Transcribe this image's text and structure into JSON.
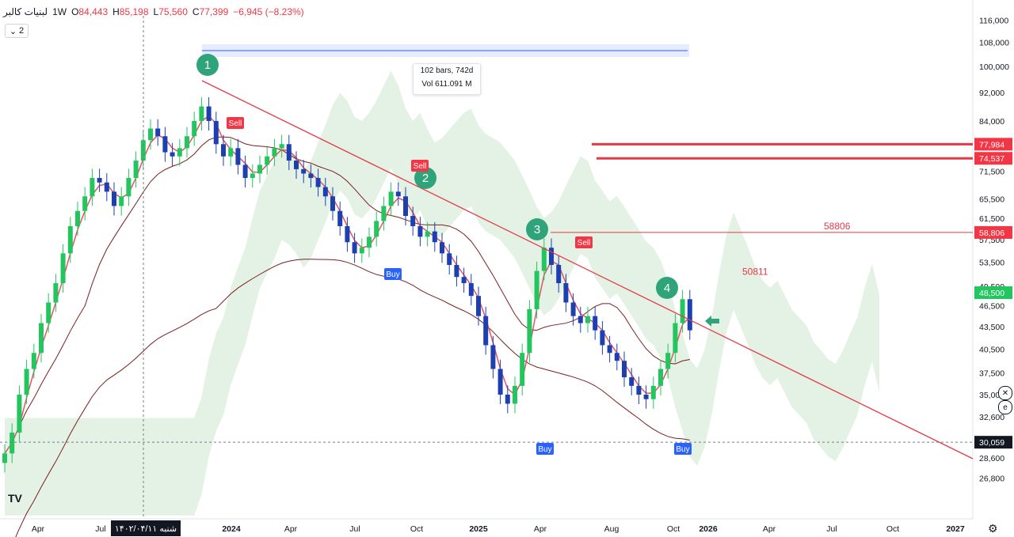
{
  "legend": {
    "symbol": "لبنیات کالبر",
    "interval": "1W",
    "open_label": "O",
    "open": "84,443",
    "high_label": "H",
    "high": "85,198",
    "low_label": "L",
    "low": "75,560",
    "close_label": "C",
    "close": "77,399",
    "change": "−6,945 (−8.23%)",
    "collapse": "2"
  },
  "measure": {
    "bars": "102 bars, 742d",
    "vol": "Vol 611.091 M"
  },
  "date_tag": "شنبه ۱۴۰۲/۰۴/۱۱",
  "colors": {
    "up": "#22c55e",
    "down": "#1e3fb0",
    "resistance": "#e53946",
    "tenkan": "#e05561",
    "kijun": "#7a1f1f",
    "cloud_bull": "#c8e6c9",
    "cloud_bear": "#f8c7c7",
    "buy": "#2962ff",
    "sell": "#f23645",
    "marker": "#2fa47a"
  },
  "chart_data": {
    "type": "candlestick",
    "interval": "1W",
    "scale": "log",
    "ylim": [
      25000,
      120000
    ],
    "y_ticks": [
      "116,000",
      "108,000",
      "100,000",
      "92,000",
      "84,000",
      "77,984",
      "74,537",
      "71,500",
      "65,500",
      "61,500",
      "58,806",
      "57,500",
      "53,500",
      "49,500",
      "48,500",
      "46,500",
      "43,500",
      "40,500",
      "37,500",
      "35,000",
      "32,600",
      "30,059",
      "28,600",
      "26,800"
    ],
    "x_ticks": [
      "Apr",
      "Jul",
      "1402/04/11",
      "2024",
      "Apr",
      "Jul",
      "Oct",
      "2025",
      "Apr",
      "Aug",
      "Oct",
      "2026",
      "Apr",
      "Jul",
      "Oct",
      "2027"
    ],
    "price_labels": [
      {
        "value": 77984,
        "text": "77,984"
      },
      {
        "value": 74537,
        "text": "74,537"
      },
      {
        "value": 58806,
        "text": "58,806"
      },
      {
        "value": 48500,
        "text": "48,500"
      },
      {
        "value": 30059,
        "text": "30,059"
      }
    ],
    "horizontal_levels": [
      {
        "name": "58806",
        "value": 58806
      },
      {
        "name": "50811",
        "value": 50811
      }
    ],
    "signals": [
      {
        "type": "Sell",
        "label": "Sell"
      },
      {
        "type": "Sell",
        "label": "Sell"
      },
      {
        "type": "Sell",
        "label": "Sell"
      },
      {
        "type": "Buy",
        "label": "Buy"
      },
      {
        "type": "Buy",
        "label": "Buy"
      },
      {
        "type": "Buy",
        "label": "Buy"
      }
    ],
    "markers": [
      "1",
      "2",
      "3",
      "4"
    ],
    "closes": [
      29000,
      31000,
      35000,
      38000,
      40000,
      44000,
      47000,
      50000,
      55000,
      60000,
      63000,
      66000,
      70000,
      69000,
      67000,
      64000,
      66000,
      70000,
      74000,
      79000,
      82000,
      80000,
      76000,
      75000,
      77000,
      80000,
      84000,
      88000,
      84000,
      78000,
      75000,
      77000,
      73000,
      70000,
      71000,
      73000,
      75000,
      77000,
      78000,
      74000,
      72000,
      71000,
      70000,
      68000,
      66000,
      63000,
      60000,
      57000,
      55000,
      56000,
      58000,
      61000,
      64000,
      67000,
      66000,
      62000,
      60000,
      58000,
      59000,
      57000,
      55000,
      53000,
      51000,
      50000,
      48000,
      45000,
      41000,
      38000,
      35000,
      34000,
      36000,
      40000,
      46000,
      52000,
      56000,
      53000,
      50000,
      47000,
      45000,
      44000,
      45000,
      43000,
      41000,
      40000,
      39000,
      37000,
      36000,
      35000,
      34500,
      36000,
      38000,
      40000,
      44000,
      47500,
      43000
    ],
    "resistance_line": {
      "from_marker": "1",
      "through_marker": "4",
      "label": "trendline"
    }
  },
  "ui": {
    "gear_icon": "gear-icon",
    "logo": "tradingview-logo"
  }
}
